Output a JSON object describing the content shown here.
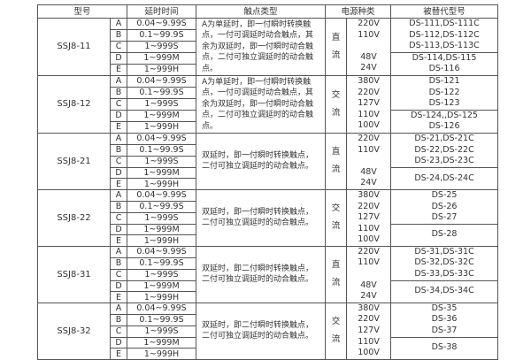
{
  "headers": [
    "型号",
    "延时时间",
    "触点类型",
    "电源种类",
    "被替代型号"
  ],
  "letters": [
    "A",
    "B",
    "C",
    "D",
    "E"
  ],
  "delays": [
    "0.04~9.99S",
    "0.1~99.9S",
    "1~999S",
    "1~999M",
    "1~999H"
  ],
  "groups": [
    {
      "model": "SSJ8-11",
      "contact": "A为单延时，即一付瞬时转换触点，一付可调延时动合触点，其余为双延时，即一付瞬时动合触点，二付可独立调延时的动合触点。",
      "ptype": "直流",
      "volts": [
        "220V",
        "110V",
        "",
        "48V",
        "24V"
      ],
      "rep_a": [
        "DS-111,DS-111C",
        "DS-112,DS-112C",
        "DS-113,DS-113C"
      ],
      "rep_b": [
        "DS-114,DS-115",
        "DS-116"
      ]
    },
    {
      "model": "SSJ8-12",
      "contact": "A为单延时，即一付瞬时转换触点，一付可调延时动合触点，其余为双延时，即一付瞬时动合触点，二付可独立调延时的动合触点。",
      "ptype": "交流",
      "volts": [
        "380V",
        "220V",
        "127V",
        "110V",
        "100V"
      ],
      "rep_a": [
        "DS-121",
        "DS-122",
        "DS-123"
      ],
      "rep_b": [
        "DS-124,,DS-125",
        "DS-126"
      ]
    },
    {
      "model": "SSJ8-21",
      "contact": "双延时，即一付瞬时转换触点，二付可独立调延时的动合触点。",
      "ptype": "直流",
      "volts": [
        "220V",
        "110V",
        "",
        "48V",
        "24V"
      ],
      "rep_a": [
        "DS-21,DS-21C",
        "DS-22,DS-22C",
        "DS-23,DS-23C"
      ],
      "rep_b": [
        "DS-24,DS-24C"
      ]
    },
    {
      "model": "SSJ8-22",
      "contact": "双延时，即一付瞬时转换触点，二付可独立调延时的动合触点。",
      "ptype": "交流",
      "volts": [
        "380V",
        "220V",
        "127V",
        "110V",
        "100V"
      ],
      "rep_a": [
        "DS-25",
        "DS-26",
        "DS-27"
      ],
      "rep_b": [
        "DS-28"
      ]
    },
    {
      "model": "SSJ8-31",
      "contact": "双延时，即二付瞬时转换触点，二付可独立调延时的动合触点。",
      "ptype": "直流",
      "volts": [
        "220V",
        "110V",
        "",
        "48V",
        "24V"
      ],
      "rep_a": [
        "DS-31,DS-31C",
        "DS-32,DS-32C",
        "DS-33,DS-33C"
      ],
      "rep_b": [
        "DS-34,DS-34C"
      ]
    },
    {
      "model": "SSJ8-32",
      "contact": "双延时，即二付瞬时转换触点，二付可独立调延时的动合触点。",
      "ptype": "交流",
      "volts": [
        "380V",
        "220V",
        "127V",
        "110V",
        "100V"
      ],
      "rep_a": [
        "DS-35",
        "DS-36",
        "DS-37"
      ],
      "rep_b": [
        "DS-38"
      ]
    }
  ]
}
